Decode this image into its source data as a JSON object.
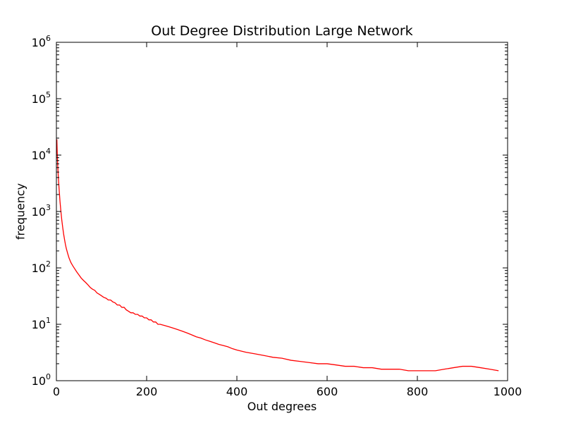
{
  "chart_data": {
    "type": "line",
    "title": "Out Degree Distribution Large Network",
    "xlabel": "Out degrees",
    "ylabel": "frequency",
    "xlim": [
      0,
      1000
    ],
    "ylim": [
      1,
      1000000
    ],
    "yscale": "log",
    "grid": false,
    "x_ticks": [
      0,
      200,
      400,
      600,
      800,
      1000
    ],
    "x_tick_labels": [
      "0",
      "200",
      "400",
      "600",
      "800",
      "1000"
    ],
    "y_ticks": [
      1,
      10,
      100,
      1000,
      10000,
      100000,
      1000000
    ],
    "y_tick_labels": [
      {
        "base": "10",
        "exp": "0"
      },
      {
        "base": "10",
        "exp": "1"
      },
      {
        "base": "10",
        "exp": "2"
      },
      {
        "base": "10",
        "exp": "3"
      },
      {
        "base": "10",
        "exp": "4"
      },
      {
        "base": "10",
        "exp": "5"
      },
      {
        "base": "10",
        "exp": "6"
      }
    ],
    "series": [
      {
        "color": "#ff0000",
        "points": [
          [
            1,
            19000
          ],
          [
            2,
            10000
          ],
          [
            3,
            6500
          ],
          [
            4,
            4500
          ],
          [
            5,
            3300
          ],
          [
            6,
            2500
          ],
          [
            8,
            1500
          ],
          [
            10,
            1000
          ],
          [
            12,
            700
          ],
          [
            14,
            520
          ],
          [
            16,
            400
          ],
          [
            18,
            320
          ],
          [
            20,
            260
          ],
          [
            22,
            220
          ],
          [
            25,
            180
          ],
          [
            28,
            150
          ],
          [
            32,
            125
          ],
          [
            36,
            110
          ],
          [
            40,
            98
          ],
          [
            45,
            85
          ],
          [
            50,
            75
          ],
          [
            55,
            66
          ],
          [
            60,
            60
          ],
          [
            65,
            55
          ],
          [
            70,
            50
          ],
          [
            75,
            45
          ],
          [
            80,
            42
          ],
          [
            85,
            40
          ],
          [
            90,
            36
          ],
          [
            95,
            34
          ],
          [
            100,
            32
          ],
          [
            105,
            30
          ],
          [
            110,
            29
          ],
          [
            115,
            27
          ],
          [
            120,
            27
          ],
          [
            125,
            25
          ],
          [
            130,
            24
          ],
          [
            135,
            22
          ],
          [
            140,
            22
          ],
          [
            145,
            20
          ],
          [
            150,
            20
          ],
          [
            155,
            18
          ],
          [
            160,
            17
          ],
          [
            165,
            16
          ],
          [
            170,
            16
          ],
          [
            175,
            15
          ],
          [
            180,
            15
          ],
          [
            185,
            14
          ],
          [
            190,
            14
          ],
          [
            195,
            13
          ],
          [
            200,
            13
          ],
          [
            205,
            12
          ],
          [
            210,
            12
          ],
          [
            215,
            11
          ],
          [
            220,
            11
          ],
          [
            225,
            10
          ],
          [
            230,
            10
          ],
          [
            240,
            9.5
          ],
          [
            250,
            9
          ],
          [
            260,
            8.5
          ],
          [
            270,
            8
          ],
          [
            280,
            7.5
          ],
          [
            290,
            7
          ],
          [
            300,
            6.5
          ],
          [
            310,
            6
          ],
          [
            320,
            5.7
          ],
          [
            330,
            5.3
          ],
          [
            340,
            5
          ],
          [
            350,
            4.7
          ],
          [
            360,
            4.4
          ],
          [
            370,
            4.2
          ],
          [
            380,
            4
          ],
          [
            390,
            3.7
          ],
          [
            400,
            3.5
          ],
          [
            420,
            3.2
          ],
          [
            440,
            3
          ],
          [
            460,
            2.8
          ],
          [
            480,
            2.6
          ],
          [
            500,
            2.5
          ],
          [
            520,
            2.3
          ],
          [
            540,
            2.2
          ],
          [
            560,
            2.1
          ],
          [
            580,
            2
          ],
          [
            600,
            2
          ],
          [
            620,
            1.9
          ],
          [
            640,
            1.8
          ],
          [
            660,
            1.8
          ],
          [
            680,
            1.7
          ],
          [
            700,
            1.7
          ],
          [
            720,
            1.6
          ],
          [
            740,
            1.6
          ],
          [
            760,
            1.6
          ],
          [
            780,
            1.5
          ],
          [
            800,
            1.5
          ],
          [
            820,
            1.5
          ],
          [
            840,
            1.5
          ],
          [
            860,
            1.6
          ],
          [
            880,
            1.7
          ],
          [
            900,
            1.8
          ],
          [
            920,
            1.8
          ],
          [
            940,
            1.7
          ],
          [
            960,
            1.6
          ],
          [
            980,
            1.5
          ]
        ]
      }
    ]
  }
}
